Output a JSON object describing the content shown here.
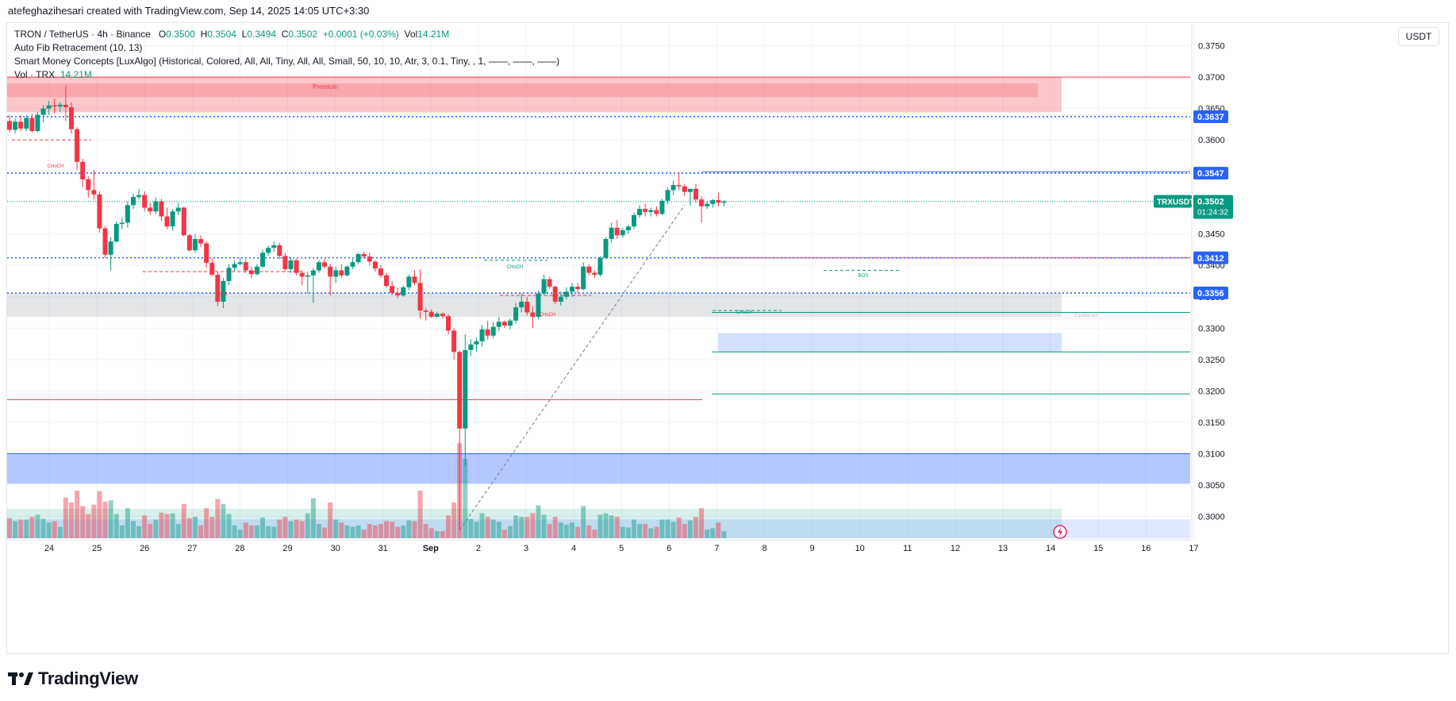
{
  "header": {
    "credit": "atefeghazihesari created with TradingView.com, Sep 14, 2025 14:05 UTC+3:30"
  },
  "legend": {
    "symbol": "TRON / TetherUS · 4h · Binance",
    "o_label": "O",
    "o": "0.3500",
    "h_label": "H",
    "h": "0.3504",
    "l_label": "L",
    "l": "0.3494",
    "c_label": "C",
    "c": "0.3502",
    "change": "+0.0001 (+0.03%)",
    "vol_label": "Vol",
    "vol": "14.21M",
    "indicator1": "Auto Fib Retracement (10, 13)",
    "indicator2": "Smart Money Concepts [LuxAlgo] (Historical, Colored, All, All, Tiny, All, All, Small, 50, 10, 10, Atr, 3, 0.1, Tiny, , 1, ——, ——, ——)",
    "indicator3_label": "Vol · TRX",
    "indicator3_value": "14.21M"
  },
  "currency": "USDT",
  "colors": {
    "up": "#089981",
    "down": "#f23645",
    "blue_zone": "#5b7fe8",
    "price_badge": "#2962ff"
  },
  "chart_data": {
    "type": "candlestick",
    "symbol": "TRXUSDT",
    "timeframe": "4h",
    "y_ticks": [
      "0.3750",
      "0.3700",
      "0.3650",
      "0.3600",
      "0.3550",
      "0.3500",
      "0.3450",
      "0.3400",
      "0.3350",
      "0.3300",
      "0.3250",
      "0.3200",
      "0.3150",
      "0.3100",
      "0.3050",
      "0.3000"
    ],
    "y_tick_values": [
      0.375,
      0.37,
      0.365,
      0.36,
      0.355,
      0.35,
      0.345,
      0.34,
      0.335,
      0.33,
      0.325,
      0.32,
      0.315,
      0.31,
      0.305,
      0.3
    ],
    "x_ticks": [
      "24",
      "25",
      "26",
      "27",
      "28",
      "29",
      "30",
      "31",
      "Sep",
      "2",
      "3",
      "4",
      "5",
      "6",
      "7",
      "8",
      "9",
      "10",
      "11",
      "12",
      "13",
      "14",
      "15",
      "16",
      "17"
    ],
    "ylim": [
      0.2965,
      0.3785
    ],
    "candles": [
      [
        0.363,
        0.364,
        0.3612,
        0.3616
      ],
      [
        0.3616,
        0.3634,
        0.361,
        0.3629
      ],
      [
        0.3629,
        0.364,
        0.3614,
        0.3618
      ],
      [
        0.3618,
        0.364,
        0.3614,
        0.3635
      ],
      [
        0.3635,
        0.3642,
        0.3612,
        0.3614
      ],
      [
        0.3614,
        0.3645,
        0.3612,
        0.364
      ],
      [
        0.364,
        0.3655,
        0.3628,
        0.365
      ],
      [
        0.365,
        0.3662,
        0.364,
        0.3655
      ],
      [
        0.3655,
        0.3666,
        0.3642,
        0.3653
      ],
      [
        0.3653,
        0.366,
        0.3644,
        0.3656
      ],
      [
        0.3656,
        0.3687,
        0.363,
        0.3652
      ],
      [
        0.3652,
        0.366,
        0.361,
        0.3617
      ],
      [
        0.3617,
        0.362,
        0.3552,
        0.3565
      ],
      [
        0.3565,
        0.357,
        0.3525,
        0.3537
      ],
      [
        0.3537,
        0.3542,
        0.3508,
        0.352
      ],
      [
        0.352,
        0.3552,
        0.3505,
        0.3513
      ],
      [
        0.3513,
        0.3518,
        0.3452,
        0.3459
      ],
      [
        0.3459,
        0.3463,
        0.3412,
        0.3417
      ],
      [
        0.3417,
        0.3445,
        0.3392,
        0.3438
      ],
      [
        0.3438,
        0.347,
        0.3436,
        0.3466
      ],
      [
        0.3466,
        0.3476,
        0.3458,
        0.3468
      ],
      [
        0.3468,
        0.3502,
        0.346,
        0.3496
      ],
      [
        0.3496,
        0.3514,
        0.349,
        0.3509
      ],
      [
        0.3509,
        0.3522,
        0.3505,
        0.3512
      ],
      [
        0.3512,
        0.3518,
        0.3486,
        0.3492
      ],
      [
        0.3492,
        0.35,
        0.348,
        0.3486
      ],
      [
        0.3486,
        0.3508,
        0.3482,
        0.3502
      ],
      [
        0.3502,
        0.3506,
        0.347,
        0.3478
      ],
      [
        0.3478,
        0.3492,
        0.3458,
        0.3462
      ],
      [
        0.3462,
        0.349,
        0.3455,
        0.3486
      ],
      [
        0.3486,
        0.35,
        0.348,
        0.3492
      ],
      [
        0.3492,
        0.3494,
        0.3446,
        0.3448
      ],
      [
        0.3448,
        0.345,
        0.3422,
        0.3424
      ],
      [
        0.3424,
        0.345,
        0.342,
        0.3442
      ],
      [
        0.3442,
        0.3448,
        0.343,
        0.3435
      ],
      [
        0.3435,
        0.3438,
        0.3396,
        0.3404
      ],
      [
        0.3404,
        0.3412,
        0.3382,
        0.3385
      ],
      [
        0.3385,
        0.339,
        0.3335,
        0.3342
      ],
      [
        0.3342,
        0.338,
        0.3332,
        0.3375
      ],
      [
        0.3375,
        0.3402,
        0.3368,
        0.3396
      ],
      [
        0.3396,
        0.3408,
        0.339,
        0.3402
      ],
      [
        0.3402,
        0.3412,
        0.34,
        0.3405
      ],
      [
        0.3405,
        0.341,
        0.3388,
        0.3392
      ],
      [
        0.3392,
        0.3398,
        0.338,
        0.3386
      ],
      [
        0.3386,
        0.3402,
        0.3384,
        0.3398
      ],
      [
        0.3398,
        0.3425,
        0.3396,
        0.342
      ],
      [
        0.342,
        0.3432,
        0.3415,
        0.3428
      ],
      [
        0.3428,
        0.3438,
        0.3422,
        0.3432
      ],
      [
        0.3432,
        0.3436,
        0.341,
        0.3415
      ],
      [
        0.3415,
        0.342,
        0.339,
        0.3394
      ],
      [
        0.3394,
        0.3412,
        0.3388,
        0.3408
      ],
      [
        0.3408,
        0.341,
        0.3384,
        0.3388
      ],
      [
        0.3388,
        0.3392,
        0.3368,
        0.3382
      ],
      [
        0.3382,
        0.339,
        0.3355,
        0.3384
      ],
      [
        0.3384,
        0.3396,
        0.334,
        0.3392
      ],
      [
        0.3392,
        0.3408,
        0.3388,
        0.3405
      ],
      [
        0.3405,
        0.341,
        0.3395,
        0.3398
      ],
      [
        0.3398,
        0.3402,
        0.3352,
        0.3382
      ],
      [
        0.3382,
        0.3398,
        0.3372,
        0.3392
      ],
      [
        0.3392,
        0.3402,
        0.338,
        0.3384
      ],
      [
        0.3384,
        0.34,
        0.3382,
        0.3398
      ],
      [
        0.3398,
        0.341,
        0.3394,
        0.3405
      ],
      [
        0.3405,
        0.342,
        0.3402,
        0.3418
      ],
      [
        0.3418,
        0.3422,
        0.341,
        0.3414
      ],
      [
        0.3414,
        0.342,
        0.34,
        0.3406
      ],
      [
        0.3406,
        0.3408,
        0.339,
        0.3395
      ],
      [
        0.3395,
        0.34,
        0.338,
        0.3384
      ],
      [
        0.3384,
        0.3388,
        0.3364,
        0.3367
      ],
      [
        0.3367,
        0.3375,
        0.3352,
        0.3356
      ],
      [
        0.3356,
        0.3364,
        0.3348,
        0.3352
      ],
      [
        0.3352,
        0.3368,
        0.335,
        0.3365
      ],
      [
        0.3365,
        0.3385,
        0.336,
        0.3382
      ],
      [
        0.3382,
        0.3392,
        0.3368,
        0.3372
      ],
      [
        0.3372,
        0.3394,
        0.3315,
        0.3328
      ],
      [
        0.3328,
        0.3332,
        0.3312,
        0.3326
      ],
      [
        0.3326,
        0.333,
        0.3316,
        0.3318
      ],
      [
        0.3318,
        0.3326,
        0.3316,
        0.3323
      ],
      [
        0.3323,
        0.3325,
        0.3315,
        0.3319
      ],
      [
        0.3319,
        0.3322,
        0.329,
        0.3296
      ],
      [
        0.3296,
        0.33,
        0.325,
        0.3262
      ],
      [
        0.3262,
        0.3264,
        0.2978,
        0.314
      ],
      [
        0.314,
        0.329,
        0.308,
        0.3265
      ],
      [
        0.3265,
        0.3282,
        0.3255,
        0.3274
      ],
      [
        0.3274,
        0.3285,
        0.3262,
        0.3279
      ],
      [
        0.3279,
        0.3305,
        0.327,
        0.3298
      ],
      [
        0.3298,
        0.3312,
        0.3282,
        0.3288
      ],
      [
        0.3288,
        0.331,
        0.3284,
        0.3302
      ],
      [
        0.3302,
        0.3318,
        0.3295,
        0.331
      ],
      [
        0.331,
        0.3312,
        0.33,
        0.3304
      ],
      [
        0.3304,
        0.3315,
        0.3298,
        0.3312
      ],
      [
        0.3312,
        0.334,
        0.3308,
        0.3333
      ],
      [
        0.3333,
        0.3355,
        0.3325,
        0.3342
      ],
      [
        0.3342,
        0.335,
        0.332,
        0.3325
      ],
      [
        0.3325,
        0.3335,
        0.33,
        0.3318
      ],
      [
        0.3318,
        0.336,
        0.3314,
        0.3355
      ],
      [
        0.3355,
        0.3385,
        0.3352,
        0.3378
      ],
      [
        0.3378,
        0.3382,
        0.3362,
        0.3366
      ],
      [
        0.3366,
        0.3368,
        0.3338,
        0.3342
      ],
      [
        0.3342,
        0.3358,
        0.3336,
        0.335
      ],
      [
        0.335,
        0.3365,
        0.3346,
        0.3358
      ],
      [
        0.3358,
        0.3372,
        0.335,
        0.3366
      ],
      [
        0.3366,
        0.3372,
        0.3356,
        0.3362
      ],
      [
        0.3362,
        0.3405,
        0.336,
        0.3398
      ],
      [
        0.3398,
        0.3402,
        0.3384,
        0.3388
      ],
      [
        0.3388,
        0.3392,
        0.338,
        0.3385
      ],
      [
        0.3385,
        0.3415,
        0.3382,
        0.3412
      ],
      [
        0.3412,
        0.3445,
        0.341,
        0.3442
      ],
      [
        0.3442,
        0.3468,
        0.3436,
        0.346
      ],
      [
        0.346,
        0.3472,
        0.3442,
        0.3448
      ],
      [
        0.3448,
        0.346,
        0.3444,
        0.3456
      ],
      [
        0.3456,
        0.3465,
        0.345,
        0.3462
      ],
      [
        0.3462,
        0.3484,
        0.3458,
        0.348
      ],
      [
        0.348,
        0.3496,
        0.3476,
        0.349
      ],
      [
        0.349,
        0.3498,
        0.3478,
        0.3485
      ],
      [
        0.3485,
        0.3492,
        0.3478,
        0.3488
      ],
      [
        0.3488,
        0.3494,
        0.3478,
        0.3482
      ],
      [
        0.3482,
        0.3506,
        0.348,
        0.3503
      ],
      [
        0.3503,
        0.3524,
        0.3498,
        0.352
      ],
      [
        0.352,
        0.3535,
        0.3512,
        0.3528
      ],
      [
        0.3528,
        0.3549,
        0.352,
        0.3526
      ],
      [
        0.3526,
        0.353,
        0.351,
        0.3517
      ],
      [
        0.3517,
        0.352,
        0.3495,
        0.3522
      ],
      [
        0.3522,
        0.353,
        0.35,
        0.3505
      ],
      [
        0.3505,
        0.351,
        0.3468,
        0.3494
      ],
      [
        0.3494,
        0.3502,
        0.349,
        0.3498
      ],
      [
        0.3498,
        0.3506,
        0.3492,
        0.3504
      ],
      [
        0.3504,
        0.3516,
        0.3494,
        0.35
      ],
      [
        0.35,
        0.3504,
        0.3494,
        0.3502
      ]
    ],
    "volume_overlay_bars": "candle-matched volume histogram at bottom",
    "levels": [
      {
        "label": "0.3637",
        "value": 0.3637,
        "style": "dotted-blue"
      },
      {
        "label": "0.3547",
        "value": 0.3547,
        "style": "dotted-blue"
      },
      {
        "label": "0.3412",
        "value": 0.3412,
        "style": "dotted-blue"
      },
      {
        "label": "0.3356",
        "value": 0.3356,
        "style": "dotted-blue"
      }
    ],
    "last_price": {
      "symbol": "TRXUSDT",
      "value": "0.3502",
      "countdown": "01:24:32"
    },
    "annotations": [
      "Premium",
      "CHoCH",
      "BOS",
      "BOS",
      "CHoCH",
      "CHoCH",
      "CHoCH",
      "BOS",
      "Equilibrium"
    ]
  },
  "footer": {
    "logo_text": "TradingView"
  }
}
